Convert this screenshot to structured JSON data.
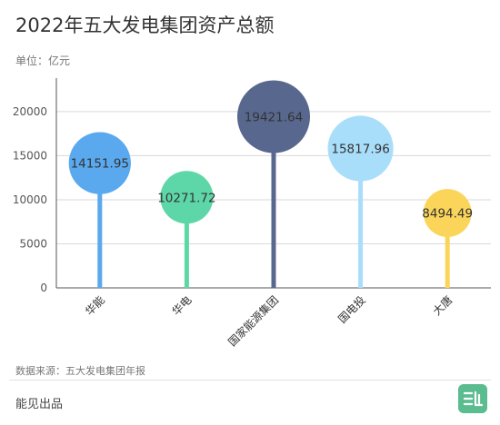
{
  "title": "2022年五大发电集团资产总额",
  "unit": "单位：亿元",
  "source": "数据来源：五大发电集团年报",
  "footer": "能见出品",
  "logo": {
    "text": "能见",
    "color": "#5bbd8f"
  },
  "chart_data": {
    "type": "bubble-lollipop",
    "categories": [
      "华能",
      "华电",
      "国家能源集团",
      "国电投",
      "大唐"
    ],
    "values": [
      14151.95,
      10271.72,
      19421.64,
      15817.96,
      8494.49
    ],
    "value_labels": [
      "14151.95",
      "10271.72",
      "19421.64",
      "15817.96",
      "8494.49"
    ],
    "colors": [
      "#5aa9ef",
      "#5ed7a8",
      "#58678e",
      "#a9defa",
      "#fbd55a"
    ],
    "stem_colors": [
      "#5aa9ef",
      "#5ed7a8",
      "#58678e",
      "#a9defa",
      "#fbd55a"
    ],
    "yticks": [
      "0",
      "5000",
      "10000",
      "15000",
      "20000"
    ],
    "ylim": [
      0,
      23800
    ],
    "grid": true
  }
}
